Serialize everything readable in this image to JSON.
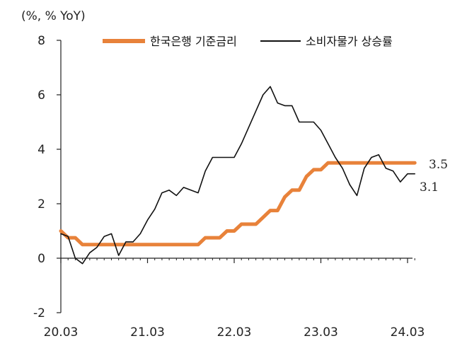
{
  "chart_data": {
    "type": "line",
    "unit_label": "(%, % YoY)",
    "x_start": "2020-03",
    "x_step": "month",
    "x_ticks": [
      "20.03",
      "21.03",
      "22.03",
      "23.03",
      "24.03"
    ],
    "y_ticks": [
      "8",
      "6",
      "4",
      "2",
      "0",
      "-2"
    ],
    "ylim": [
      -2,
      8
    ],
    "grid": false,
    "legend_position": "top",
    "series": [
      {
        "name": "한국은행 기준금리",
        "color": "#E8823A",
        "end_label": "3.5",
        "values": [
          1.0,
          0.75,
          0.75,
          0.5,
          0.5,
          0.5,
          0.5,
          0.5,
          0.5,
          0.5,
          0.5,
          0.5,
          0.5,
          0.5,
          0.5,
          0.5,
          0.5,
          0.5,
          0.5,
          0.5,
          0.75,
          0.75,
          0.75,
          1.0,
          1.0,
          1.25,
          1.25,
          1.25,
          1.5,
          1.75,
          1.75,
          2.25,
          2.5,
          2.5,
          3.0,
          3.25,
          3.25,
          3.5,
          3.5,
          3.5,
          3.5,
          3.5,
          3.5,
          3.5,
          3.5,
          3.5,
          3.5,
          3.5,
          3.5,
          3.5
        ]
      },
      {
        "name": "소비자물가 상승률",
        "color": "#111111",
        "end_label": "3.1",
        "values": [
          0.9,
          0.8,
          0.0,
          -0.2,
          0.2,
          0.4,
          0.8,
          0.9,
          0.1,
          0.6,
          0.6,
          0.9,
          1.4,
          1.8,
          2.4,
          2.5,
          2.3,
          2.6,
          2.5,
          2.4,
          3.2,
          3.7,
          3.7,
          3.7,
          3.7,
          4.2,
          4.8,
          5.4,
          6.0,
          6.3,
          5.7,
          5.6,
          5.6,
          5.0,
          5.0,
          5.0,
          4.7,
          4.2,
          3.7,
          3.3,
          2.7,
          2.3,
          3.3,
          3.7,
          3.8,
          3.3,
          3.2,
          2.8,
          3.1,
          3.1
        ]
      }
    ]
  }
}
